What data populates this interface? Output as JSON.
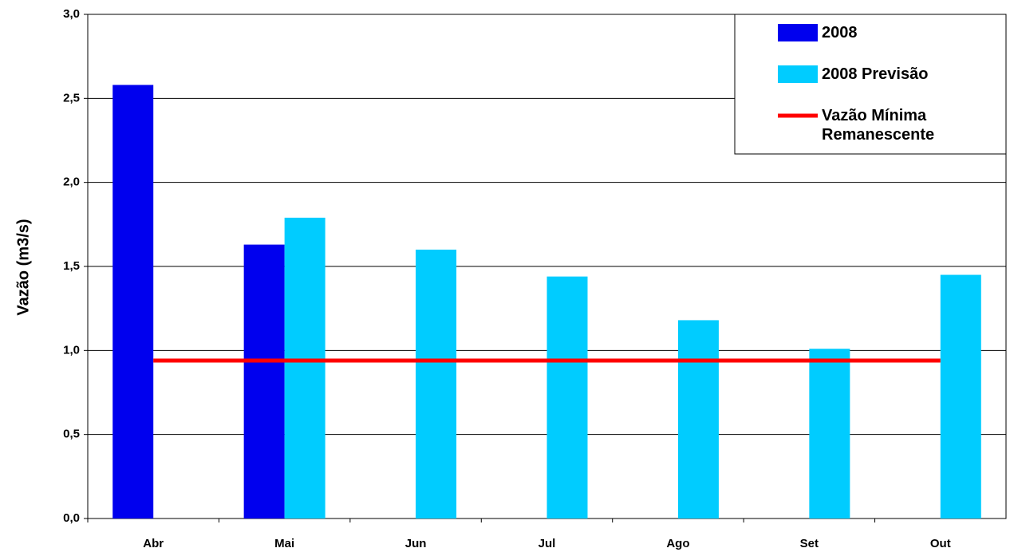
{
  "chart_data": {
    "type": "bar",
    "y_label": "Vazão (m3/s)",
    "categories": [
      "Abr",
      "Mai",
      "Jun",
      "Jul",
      "Ago",
      "Set",
      "Out"
    ],
    "series": [
      {
        "name": "2008",
        "color": "#0000ee",
        "values": [
          2.58,
          1.63,
          null,
          null,
          null,
          null,
          null
        ]
      },
      {
        "name": "2008 Previsão",
        "color": "#00ccff",
        "values": [
          null,
          1.79,
          1.6,
          1.44,
          1.18,
          1.01,
          1.45
        ]
      },
      {
        "name": "Vazão Mínima Remanescente",
        "type": "line",
        "color": "#ff0000",
        "values": [
          0.94,
          0.94,
          0.94,
          0.94,
          0.94,
          0.94,
          0.94
        ]
      }
    ],
    "ylim": [
      0,
      3
    ],
    "yticks": [
      {
        "value": 0,
        "label": "0,0"
      },
      {
        "value": 0.5,
        "label": "0,5"
      },
      {
        "value": 1,
        "label": "1,0"
      },
      {
        "value": 1.5,
        "label": "1,5"
      },
      {
        "value": 2,
        "label": "2,0"
      },
      {
        "value": 2.5,
        "label": "2,5"
      },
      {
        "value": 3,
        "label": "3,0"
      }
    ],
    "grid": true,
    "legend": "top-right"
  }
}
